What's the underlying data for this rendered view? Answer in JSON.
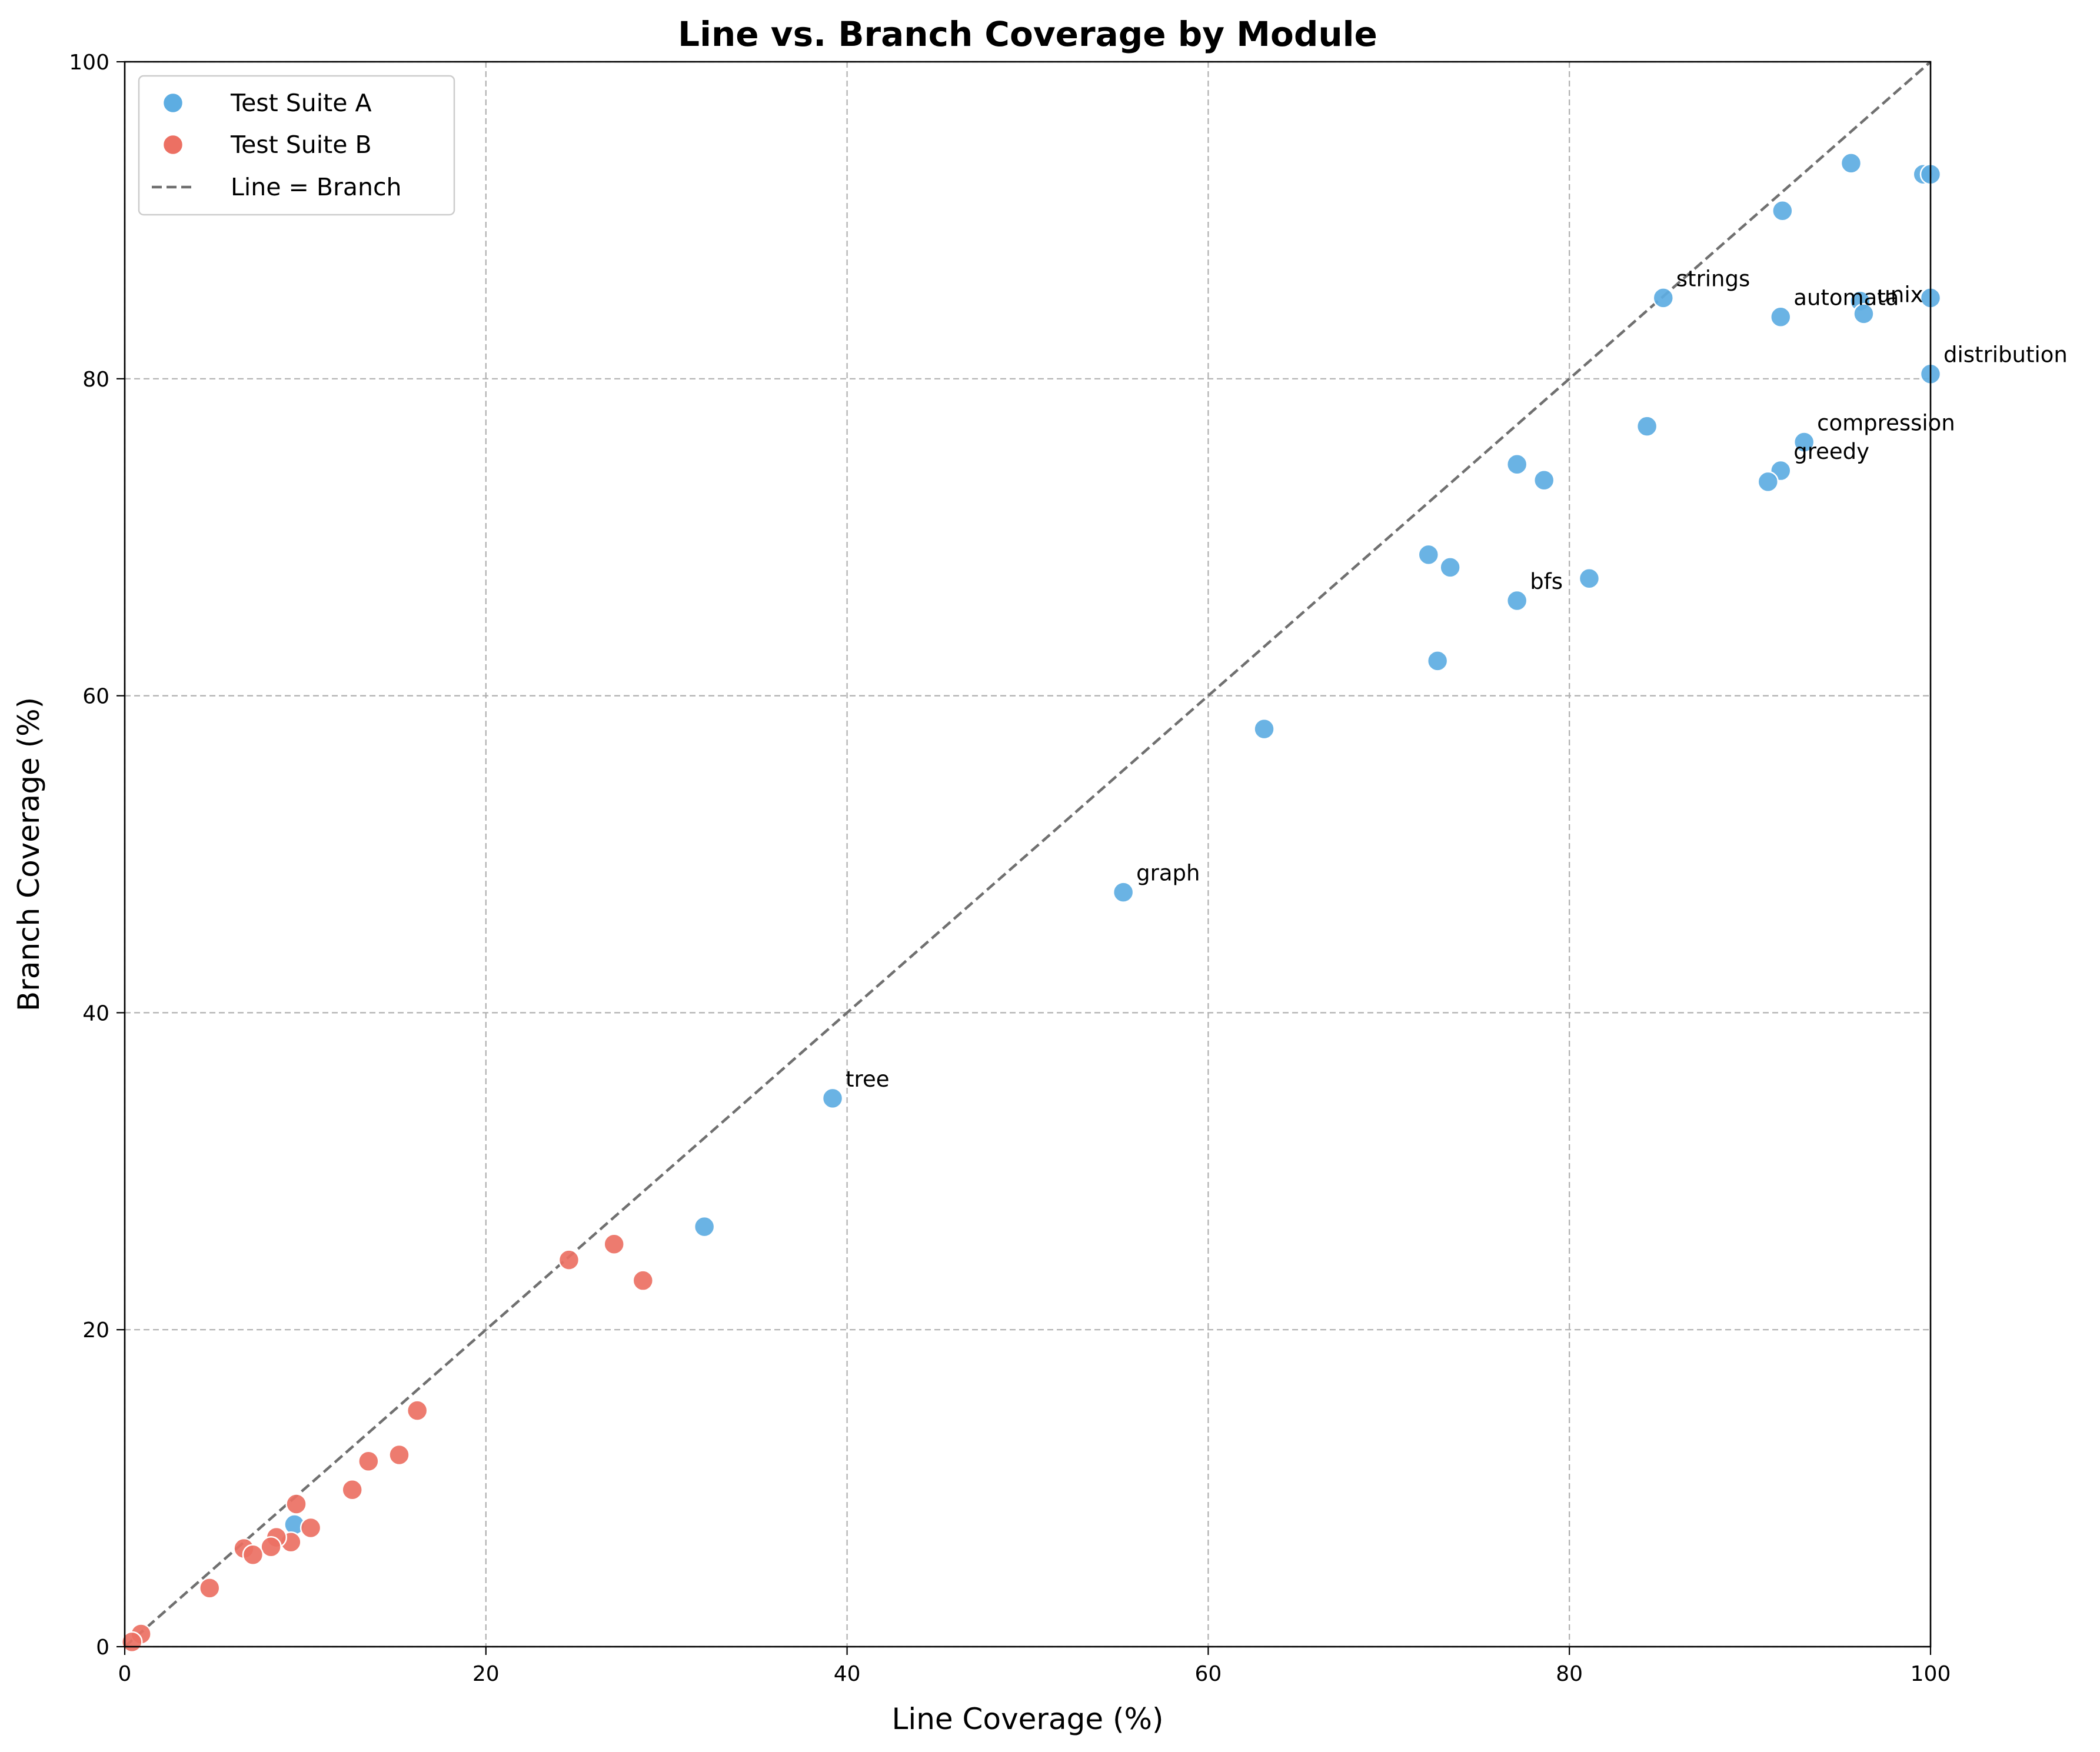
{
  "chart_data": {
    "type": "scatter",
    "title": "Line vs. Branch Coverage by Module",
    "xlabel": "Line Coverage (%)",
    "ylabel": "Branch Coverage (%)",
    "xlim": [
      0,
      100
    ],
    "ylim": [
      0,
      100
    ],
    "xticks": [
      "0",
      "20",
      "40",
      "60",
      "80",
      "100"
    ],
    "yticks": [
      "0",
      "20",
      "40",
      "60",
      "80",
      "100"
    ],
    "grid": true,
    "legend_position": "top-left",
    "series": [
      {
        "name": "Test Suite A",
        "color": "#5DADE2",
        "points": [
          {
            "x": 95.6,
            "y": 93.6
          },
          {
            "x": 99.6,
            "y": 92.9
          },
          {
            "x": 100.0,
            "y": 92.9
          },
          {
            "x": 91.8,
            "y": 90.6
          },
          {
            "x": 85.2,
            "y": 85.1,
            "label": "strings"
          },
          {
            "x": 96.1,
            "y": 84.9
          },
          {
            "x": 96.3,
            "y": 84.1,
            "label": "unix"
          },
          {
            "x": 100.0,
            "y": 85.1
          },
          {
            "x": 91.7,
            "y": 83.9,
            "label": "automata"
          },
          {
            "x": 100.0,
            "y": 80.3,
            "label": "distribution"
          },
          {
            "x": 84.3,
            "y": 77.0
          },
          {
            "x": 93.0,
            "y": 76.0,
            "label": "compression"
          },
          {
            "x": 77.1,
            "y": 74.6
          },
          {
            "x": 78.6,
            "y": 73.6
          },
          {
            "x": 91.7,
            "y": 74.2,
            "label": "greedy"
          },
          {
            "x": 91.0,
            "y": 73.5
          },
          {
            "x": 72.2,
            "y": 68.9
          },
          {
            "x": 73.4,
            "y": 68.1
          },
          {
            "x": 81.1,
            "y": 67.4
          },
          {
            "x": 77.1,
            "y": 66.0,
            "label": "bfs"
          },
          {
            "x": 72.7,
            "y": 62.2
          },
          {
            "x": 63.1,
            "y": 57.9
          },
          {
            "x": 55.3,
            "y": 47.6,
            "label": "graph"
          },
          {
            "x": 39.2,
            "y": 34.6,
            "label": "tree"
          },
          {
            "x": 32.1,
            "y": 26.5
          },
          {
            "x": 9.4,
            "y": 7.7
          }
        ]
      },
      {
        "name": "Test Suite B",
        "color": "#EC7063",
        "points": [
          {
            "x": 28.7,
            "y": 23.1
          },
          {
            "x": 27.1,
            "y": 25.4
          },
          {
            "x": 24.6,
            "y": 24.4
          },
          {
            "x": 16.2,
            "y": 14.9
          },
          {
            "x": 15.2,
            "y": 12.1
          },
          {
            "x": 13.5,
            "y": 11.7
          },
          {
            "x": 12.6,
            "y": 9.9
          },
          {
            "x": 9.5,
            "y": 9.0
          },
          {
            "x": 10.3,
            "y": 7.5
          },
          {
            "x": 9.2,
            "y": 6.6
          },
          {
            "x": 8.4,
            "y": 6.9
          },
          {
            "x": 8.1,
            "y": 6.3
          },
          {
            "x": 6.6,
            "y": 6.2
          },
          {
            "x": 7.1,
            "y": 5.8
          },
          {
            "x": 4.7,
            "y": 3.7
          },
          {
            "x": 0.9,
            "y": 0.8
          },
          {
            "x": 0.4,
            "y": 0.3
          }
        ]
      }
    ],
    "reference_line": {
      "name": "Line = Branch",
      "color": "#707070",
      "style": "dashed",
      "from": [
        0,
        0
      ],
      "to": [
        100,
        100
      ]
    }
  }
}
